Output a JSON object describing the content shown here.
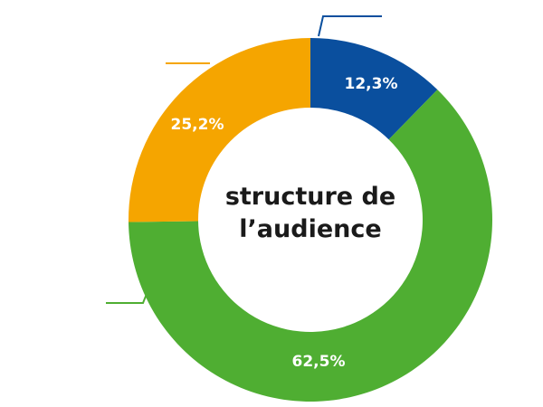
{
  "chart_data": {
    "type": "donut",
    "title": "structure de l’audience",
    "categories": [
      null,
      null,
      null
    ],
    "values": [
      12.3,
      62.5,
      25.2
    ],
    "value_labels": [
      "12,3%",
      "62,5%",
      "25,2%"
    ],
    "colors": [
      "#0a4f9e",
      "#4fae32",
      "#f5a500"
    ]
  }
}
